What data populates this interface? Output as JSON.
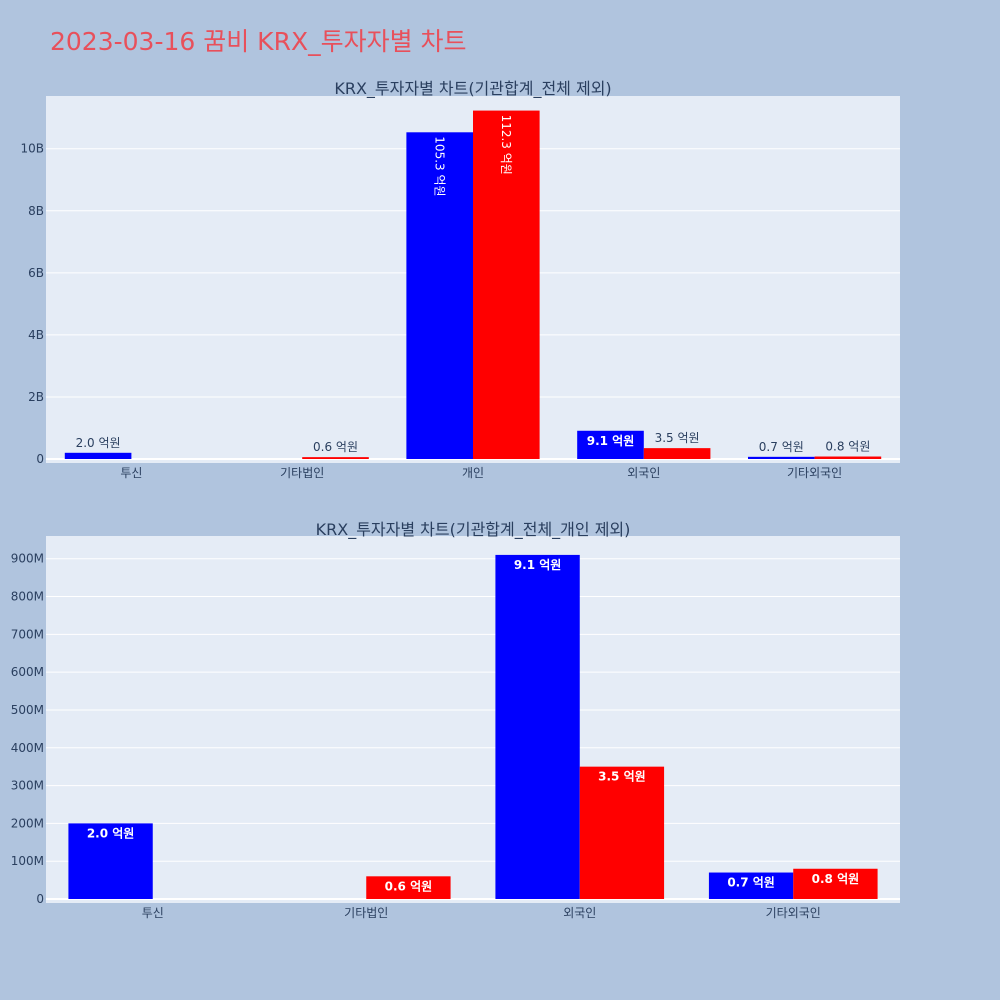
{
  "title": "2023-03-16 꿈비 KRX_투자자별 차트",
  "colors": {
    "buy": "#0000ff",
    "sell": "#ff0000",
    "page_bg": "#b0c4de",
    "plot_bg": "#e5ecf6",
    "title": "#e8505b"
  },
  "chart_data": [
    {
      "type": "bar",
      "title": "KRX_투자자별 차트(기관합계_전체 제외)",
      "categories": [
        "투신",
        "기타법인",
        "개인",
        "외국인",
        "기타외국인"
      ],
      "ylim": [
        0,
        11700000000
      ],
      "yticks": [
        0,
        2000000000,
        4000000000,
        6000000000,
        8000000000,
        10000000000
      ],
      "ytick_labels": [
        "0",
        "2B",
        "4B",
        "6B",
        "8B",
        "10B"
      ],
      "grid": true,
      "series": [
        {
          "values": [
            200000000,
            0,
            10530000000,
            910000000,
            70000000
          ],
          "labels": [
            "2.0 억원",
            "",
            "105.3 억원",
            "9.1 억원",
            "0.7 억원"
          ]
        },
        {
          "values": [
            0,
            60000000,
            11230000000,
            350000000,
            80000000
          ],
          "labels": [
            "",
            "0.6 억원",
            "112.3 억원",
            "3.5 억원",
            "0.8 억원"
          ]
        }
      ]
    },
    {
      "type": "bar",
      "title": "KRX_투자자별 차트(기관합계_전체_개인 제외)",
      "categories": [
        "투신",
        "기타법인",
        "외국인",
        "기타외국인"
      ],
      "ylim": [
        0,
        960000000
      ],
      "yticks": [
        0,
        100000000,
        200000000,
        300000000,
        400000000,
        500000000,
        600000000,
        700000000,
        800000000,
        900000000
      ],
      "ytick_labels": [
        "0",
        "100M",
        "200M",
        "300M",
        "400M",
        "500M",
        "600M",
        "700M",
        "800M",
        "900M"
      ],
      "grid": true,
      "series": [
        {
          "values": [
            200000000,
            0,
            910000000,
            70000000
          ],
          "labels": [
            "2.0 억원",
            "",
            "9.1 억원",
            "0.7 억원"
          ]
        },
        {
          "values": [
            0,
            60000000,
            350000000,
            80000000
          ],
          "labels": [
            "",
            "0.6 억원",
            "3.5 억원",
            "0.8 억원"
          ]
        }
      ]
    }
  ]
}
